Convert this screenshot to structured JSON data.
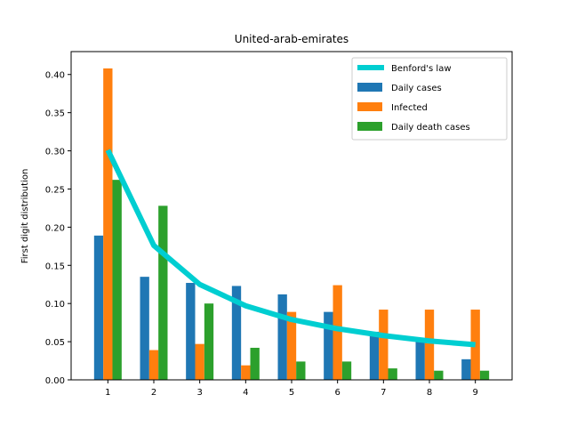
{
  "chart_data": {
    "type": "bar",
    "title": "United-arab-emirates",
    "xlabel": "",
    "ylabel": "First digit distribution",
    "categories": [
      "1",
      "2",
      "3",
      "4",
      "5",
      "6",
      "7",
      "8",
      "9"
    ],
    "x": [
      1,
      2,
      3,
      4,
      5,
      6,
      7,
      8,
      9
    ],
    "ylim": [
      0,
      0.43
    ],
    "yticks": [
      0.0,
      0.05,
      0.1,
      0.15,
      0.2,
      0.25,
      0.3,
      0.35,
      0.4
    ],
    "ytick_labels": [
      "0.00",
      "0.05",
      "0.10",
      "0.15",
      "0.20",
      "0.25",
      "0.30",
      "0.35",
      "0.40"
    ],
    "legend_position": "top-right",
    "grid": false,
    "series": [
      {
        "name": "Benford's law",
        "kind": "line",
        "color": "#00CED1",
        "values": [
          0.301,
          0.176,
          0.125,
          0.097,
          0.079,
          0.067,
          0.058,
          0.051,
          0.046
        ]
      },
      {
        "name": "Daily cases",
        "kind": "bar",
        "color": "#1f77b4",
        "values": [
          0.189,
          0.135,
          0.127,
          0.123,
          0.112,
          0.089,
          0.063,
          0.052,
          0.027
        ]
      },
      {
        "name": "Infected",
        "kind": "bar",
        "color": "#ff7f0e",
        "values": [
          0.408,
          0.039,
          0.047,
          0.019,
          0.089,
          0.124,
          0.092,
          0.092,
          0.092
        ]
      },
      {
        "name": "Daily death cases",
        "kind": "bar",
        "color": "#2ca02c",
        "values": [
          0.262,
          0.228,
          0.1,
          0.042,
          0.024,
          0.024,
          0.015,
          0.012,
          0.012
        ]
      }
    ]
  }
}
